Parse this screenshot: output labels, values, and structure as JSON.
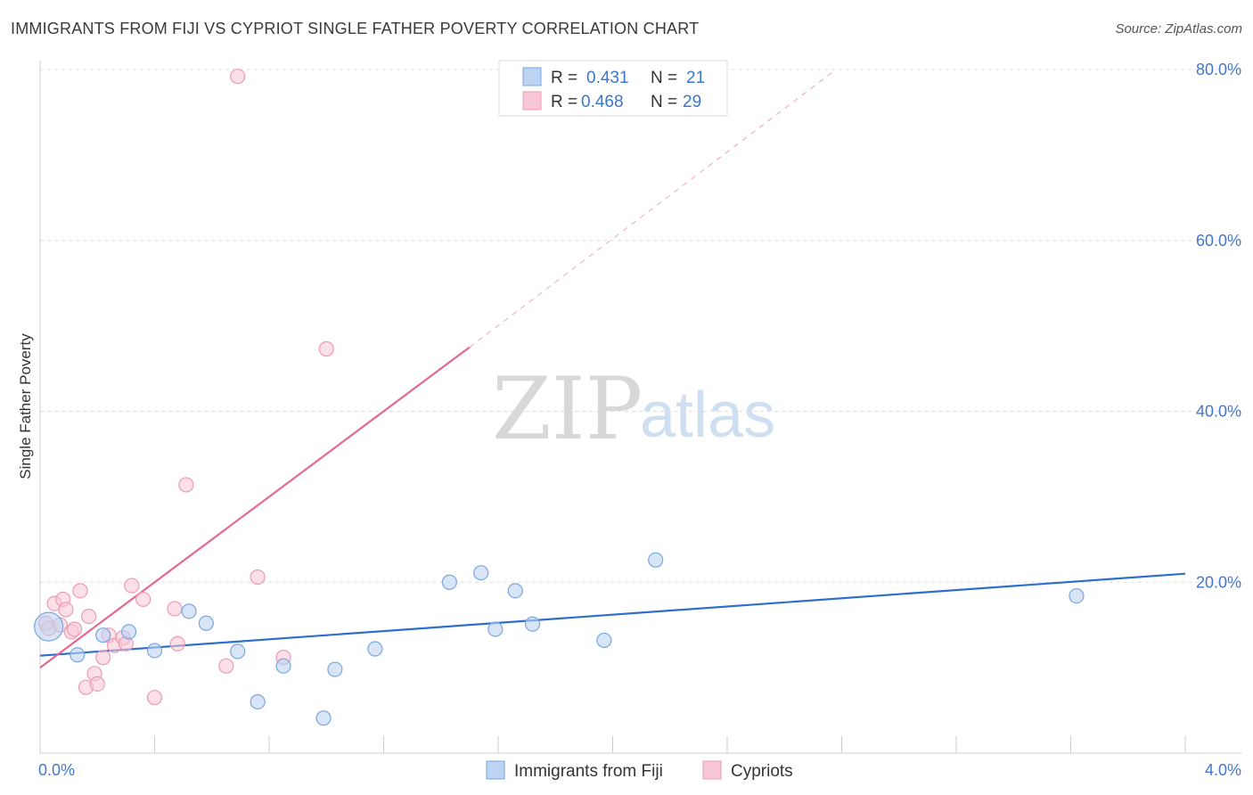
{
  "title": "IMMIGRANTS FROM FIJI VS CYPRIOT SINGLE FATHER POVERTY CORRELATION CHART",
  "source": "Source: ZipAtlas.com",
  "watermark": {
    "zip": "ZIP",
    "atlas": "atlas"
  },
  "colors": {
    "fiji_fill": "#bcd3f2",
    "fiji_stroke": "#7aa6dd",
    "fiji_line": "#2f6fcc",
    "cypriot_fill": "#f8c7d6",
    "cypriot_stroke": "#ee9ab4",
    "cypriot_line": "#e5678f",
    "grid": "#dddddd",
    "axis_text": "#4477cc"
  },
  "chart_data": {
    "type": "scatter",
    "title": "IMMIGRANTS FROM FIJI VS CYPRIOT SINGLE FATHER POVERTY CORRELATION CHART",
    "xlabel": "",
    "ylabel": "Single Father Poverty",
    "xlim": [
      0,
      4.0
    ],
    "ylim": [
      0,
      80
    ],
    "x_tick_labels": [
      "0.0%",
      "4.0%"
    ],
    "y_ticks": [
      20,
      40,
      60,
      80
    ],
    "y_tick_labels": [
      "20.0%",
      "40.0%",
      "60.0%",
      "80.0%"
    ],
    "legend": [
      {
        "r_label": "R =",
        "r_value": "0.431",
        "n_label": "N =",
        "n_value": "21"
      },
      {
        "r_label": "R =",
        "r_value": "0.468",
        "n_label": "N =",
        "n_value": "29"
      }
    ],
    "series": [
      {
        "name": "Immigrants from Fiji",
        "points": [
          {
            "x": 0.03,
            "y": 14.8,
            "big": true
          },
          {
            "x": 0.13,
            "y": 11.5
          },
          {
            "x": 0.22,
            "y": 13.8
          },
          {
            "x": 0.31,
            "y": 14.2
          },
          {
            "x": 0.4,
            "y": 12.0
          },
          {
            "x": 0.52,
            "y": 16.6
          },
          {
            "x": 0.58,
            "y": 15.2
          },
          {
            "x": 0.69,
            "y": 11.9
          },
          {
            "x": 0.76,
            "y": 6.0
          },
          {
            "x": 0.85,
            "y": 10.2
          },
          {
            "x": 0.99,
            "y": 4.1
          },
          {
            "x": 1.03,
            "y": 9.8
          },
          {
            "x": 1.17,
            "y": 12.2
          },
          {
            "x": 1.43,
            "y": 20.0
          },
          {
            "x": 1.54,
            "y": 21.1
          },
          {
            "x": 1.59,
            "y": 14.5
          },
          {
            "x": 1.66,
            "y": 19.0
          },
          {
            "x": 1.72,
            "y": 15.1
          },
          {
            "x": 1.97,
            "y": 13.2
          },
          {
            "x": 2.15,
            "y": 22.6
          },
          {
            "x": 3.62,
            "y": 18.4
          }
        ],
        "trend": {
          "x0": 0.0,
          "y0": 11.4,
          "x1": 4.0,
          "y1": 21.0
        }
      },
      {
        "name": "Cypriots",
        "points": [
          {
            "x": 0.02,
            "y": 15.2
          },
          {
            "x": 0.05,
            "y": 17.5
          },
          {
            "x": 0.07,
            "y": 15.0
          },
          {
            "x": 0.08,
            "y": 18.0
          },
          {
            "x": 0.09,
            "y": 16.8
          },
          {
            "x": 0.11,
            "y": 14.2
          },
          {
            "x": 0.12,
            "y": 14.5
          },
          {
            "x": 0.14,
            "y": 19.0
          },
          {
            "x": 0.16,
            "y": 7.7
          },
          {
            "x": 0.17,
            "y": 16.0
          },
          {
            "x": 0.19,
            "y": 9.3
          },
          {
            "x": 0.2,
            "y": 8.1
          },
          {
            "x": 0.22,
            "y": 11.2
          },
          {
            "x": 0.24,
            "y": 13.8
          },
          {
            "x": 0.26,
            "y": 12.6
          },
          {
            "x": 0.29,
            "y": 13.5
          },
          {
            "x": 0.3,
            "y": 12.8
          },
          {
            "x": 0.32,
            "y": 19.6
          },
          {
            "x": 0.36,
            "y": 18.0
          },
          {
            "x": 0.4,
            "y": 6.5
          },
          {
            "x": 0.47,
            "y": 16.9
          },
          {
            "x": 0.48,
            "y": 12.8
          },
          {
            "x": 0.51,
            "y": 31.4
          },
          {
            "x": 0.65,
            "y": 10.2
          },
          {
            "x": 0.69,
            "y": 79.2
          },
          {
            "x": 0.76,
            "y": 20.6
          },
          {
            "x": 0.85,
            "y": 11.2
          },
          {
            "x": 1.0,
            "y": 47.3
          },
          {
            "x": 0.03,
            "y": 14.6
          }
        ],
        "trend": {
          "x0": 0.0,
          "y0": 10.0,
          "x1": 1.5,
          "y1": 47.5
        },
        "trend_dashed": {
          "x0": 1.5,
          "y0": 47.5,
          "x1": 2.78,
          "y1": 80.0
        }
      }
    ]
  }
}
